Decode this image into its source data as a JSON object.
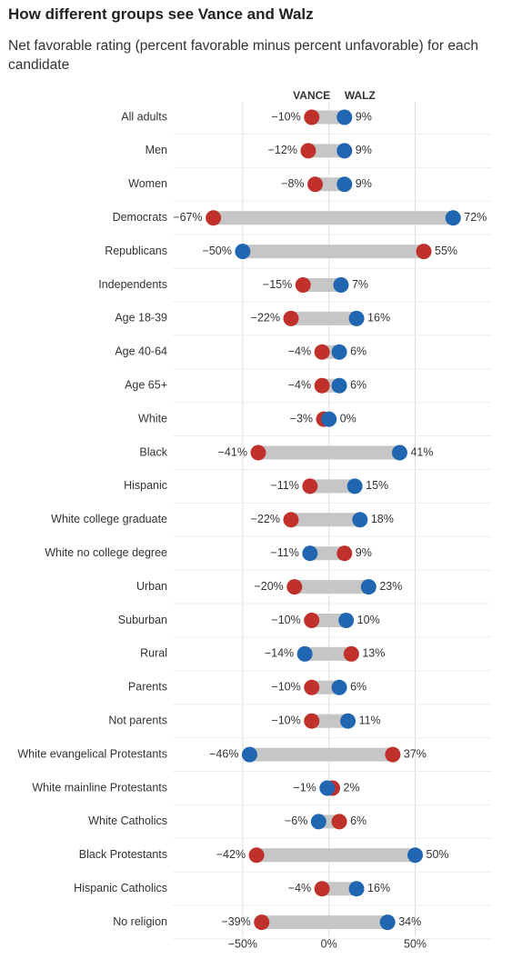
{
  "chart_data": {
    "type": "dumbbell",
    "title": "How different groups see Vance and Walz",
    "subtitle": "Net favorable rating (percent favorable minus percent unfavorable) for each candidate",
    "categories": [
      "All adults",
      "Men",
      "Women",
      "Democrats",
      "Republicans",
      "Independents",
      "Age 18-39",
      "Age 40-64",
      "Age 65+",
      "White",
      "Black",
      "Hispanic",
      "White college graduate",
      "White no college degree",
      "Urban",
      "Suburban",
      "Rural",
      "Parents",
      "Not parents",
      "White evangelical Protestants",
      "White mainline Protestants",
      "White Catholics",
      "Black Protestants",
      "Hispanic Catholics",
      "No religion"
    ],
    "series": [
      {
        "name": "VANCE",
        "color": "#c0312b",
        "values": [
          -10,
          -12,
          -8,
          -67,
          55,
          -15,
          -22,
          -4,
          -4,
          -3,
          -41,
          -11,
          -22,
          9,
          -20,
          -10,
          13,
          -10,
          -10,
          37,
          2,
          6,
          -42,
          -4,
          -39
        ],
        "value_labels": [
          "−10%",
          "−12%",
          "−8%",
          "−67%",
          "55%",
          "−15%",
          "−22%",
          "−4%",
          "−4%",
          "−3%",
          "−41%",
          "−11%",
          "−22%",
          "9%",
          "−20%",
          "−10%",
          "13%",
          "−10%",
          "−10%",
          "37%",
          "2%",
          "6%",
          "−42%",
          "−4%",
          "−39%"
        ]
      },
      {
        "name": "WALZ",
        "color": "#2166b0",
        "values": [
          9,
          9,
          9,
          72,
          -50,
          7,
          16,
          6,
          6,
          0,
          41,
          15,
          18,
          -11,
          23,
          10,
          -14,
          6,
          11,
          -46,
          -1,
          -6,
          50,
          16,
          34
        ],
        "value_labels": [
          "9%",
          "9%",
          "9%",
          "72%",
          "−50%",
          "7%",
          "16%",
          "6%",
          "6%",
          "0%",
          "41%",
          "15%",
          "18%",
          "−11%",
          "23%",
          "10%",
          "−14%",
          "6%",
          "11%",
          "−46%",
          "−1%",
          "−6%",
          "50%",
          "16%",
          "34%"
        ]
      }
    ],
    "xlim": [
      -90,
      94
    ],
    "xticks": [
      {
        "value": -50,
        "label": "−50%"
      },
      {
        "value": 0,
        "label": "0%"
      },
      {
        "value": 50,
        "label": "50%"
      }
    ],
    "grid": true
  }
}
